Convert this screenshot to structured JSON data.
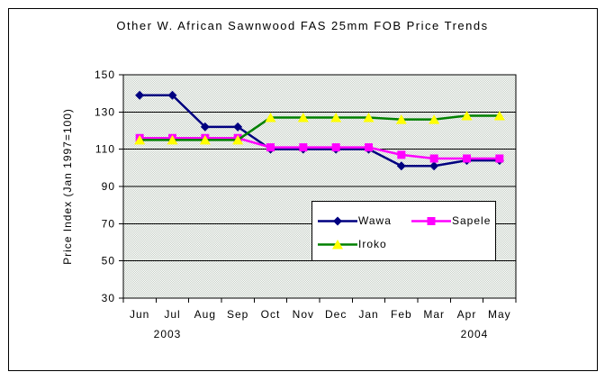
{
  "chart_data": {
    "type": "line",
    "title": "Other W. African Sawnwood FAS 25mm FOB Price Trends",
    "ylabel": "Price Index (Jan 1997=100)",
    "xlabel": "",
    "categories": [
      "Jun",
      "Jul",
      "Aug",
      "Sep",
      "Oct",
      "Nov",
      "Dec",
      "Jan",
      "Feb",
      "Mar",
      "Apr",
      "May"
    ],
    "year_labels": [
      "2003",
      "2004"
    ],
    "ylim": [
      30,
      150
    ],
    "yticks": [
      150,
      130,
      110,
      90,
      70,
      50,
      30
    ],
    "grid": true,
    "legend_position": "inside-bottom-right",
    "series": [
      {
        "name": "Wawa",
        "color": "#000080",
        "marker": "diamond",
        "marker_color": "#000080",
        "values": [
          139,
          139,
          122,
          122,
          110,
          110,
          110,
          110,
          101,
          101,
          104,
          104
        ]
      },
      {
        "name": "Sapele",
        "color": "#ff00ff",
        "marker": "square",
        "marker_color": "#ff00ff",
        "values": [
          116,
          116,
          116,
          116,
          111,
          111,
          111,
          111,
          107,
          105,
          105,
          105
        ]
      },
      {
        "name": "Iroko",
        "color": "#008000",
        "marker": "triangle",
        "marker_color": "#ffff00",
        "values": [
          115,
          115,
          115,
          115,
          127,
          127,
          127,
          127,
          126,
          126,
          128,
          128
        ]
      }
    ],
    "colors": {
      "plot_bg_light": "#ffffff",
      "plot_bg_dark": "#c6cfc6",
      "axis": "#000000",
      "gridline": "#000000",
      "legend_bg": "#ffffff",
      "frame_border": "#000000"
    }
  }
}
